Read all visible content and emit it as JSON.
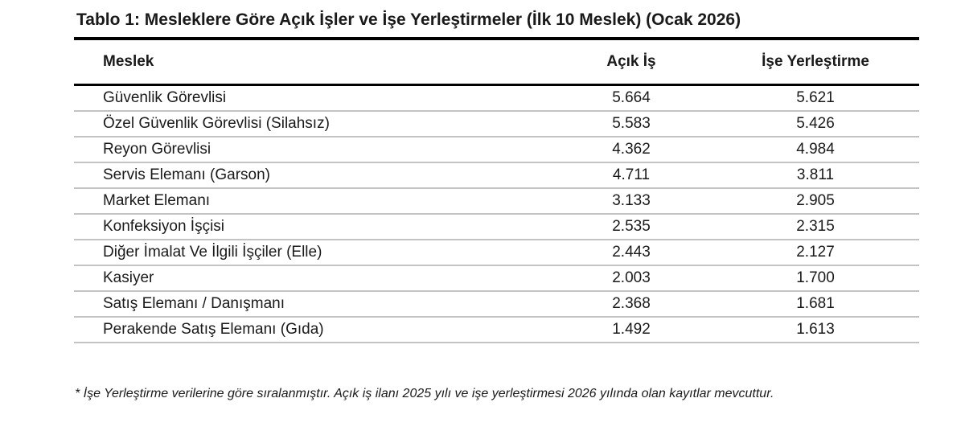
{
  "table": {
    "title": "Tablo 1: Mesleklere Göre Açık İşler ve İşe Yerleştirmeler (İlk 10 Meslek) (Ocak 2026)",
    "columns": [
      "Meslek",
      "Açık İş",
      "İşe Yerleştirme"
    ],
    "rows": [
      {
        "meslek": "Güvenlik Görevlisi",
        "acik_is": "5.664",
        "ise_yerlestirme": "5.621"
      },
      {
        "meslek": "Özel Güvenlik Görevlisi (Silahsız)",
        "acik_is": "5.583",
        "ise_yerlestirme": "5.426"
      },
      {
        "meslek": "Reyon Görevlisi",
        "acik_is": "4.362",
        "ise_yerlestirme": "4.984"
      },
      {
        "meslek": "Servis Elemanı (Garson)",
        "acik_is": "4.711",
        "ise_yerlestirme": "3.811"
      },
      {
        "meslek": "Market Elemanı",
        "acik_is": "3.133",
        "ise_yerlestirme": "2.905"
      },
      {
        "meslek": "Konfeksiyon İşçisi",
        "acik_is": "2.535",
        "ise_yerlestirme": "2.315"
      },
      {
        "meslek": "Diğer İmalat Ve İlgili İşçiler (Elle)",
        "acik_is": "2.443",
        "ise_yerlestirme": "2.127"
      },
      {
        "meslek": "Kasiyer",
        "acik_is": "2.003",
        "ise_yerlestirme": "1.700"
      },
      {
        "meslek": "Satış Elemanı / Danışmanı",
        "acik_is": "2.368",
        "ise_yerlestirme": "1.681"
      },
      {
        "meslek": "Perakende Satış Elemanı (Gıda)",
        "acik_is": "1.492",
        "ise_yerlestirme": "1.613"
      }
    ],
    "footnote": "* İşe Yerleştirme verilerine göre sıralanmıştır. Açık iş ilanı 2025 yılı ve işe yerleştirmesi 2026 yılında olan kayıtlar mevcuttur.",
    "colors": {
      "text": "#1a1a1a",
      "rule": "#000000",
      "row_divider": "#c3c3c3",
      "background": "#ffffff"
    }
  }
}
